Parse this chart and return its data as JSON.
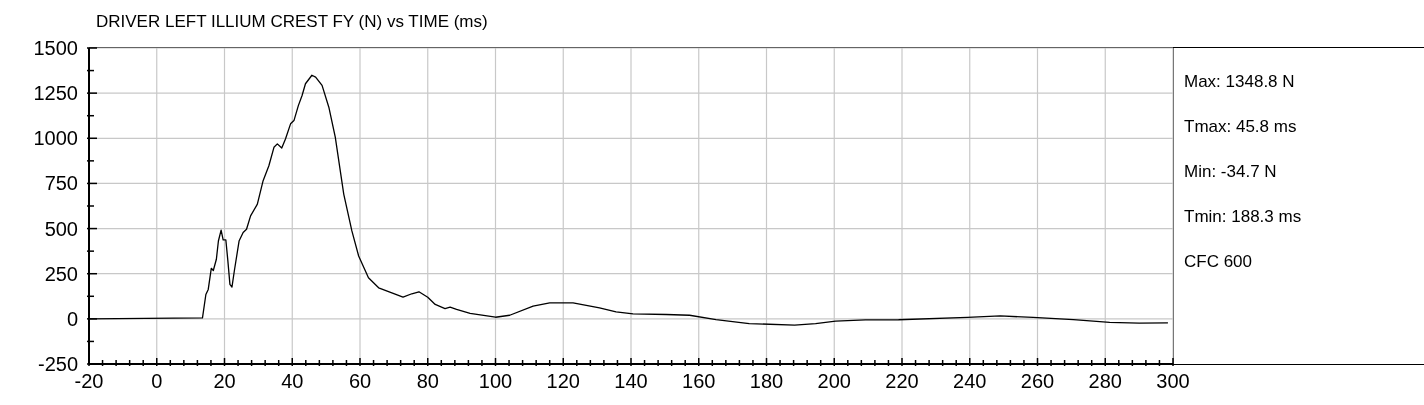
{
  "chart_data": {
    "type": "line",
    "title": "DRIVER LEFT ILLIUM CREST FY (N) vs TIME (ms)",
    "x": [
      -20,
      13.5,
      14.5,
      15.2,
      16.1,
      16.7,
      17.6,
      18.2,
      19.0,
      19.6,
      20.4,
      21.0,
      21.6,
      22.2,
      22.9,
      24.3,
      25.5,
      26.5,
      27.7,
      29.7,
      31.4,
      33.1,
      34.6,
      35.6,
      36.9,
      38.0,
      39.5,
      40.5,
      41.8,
      42.9,
      43.9,
      45.8,
      46.9,
      48.8,
      50.8,
      52.7,
      55.2,
      57.6,
      59.6,
      62.5,
      65.5,
      69.4,
      72.7,
      75.3,
      77.4,
      80,
      82.2,
      85.1,
      86.6,
      88.5,
      92.5,
      100,
      104.2,
      111.1,
      116,
      122.9,
      130.7,
      135.6,
      140.6,
      150.4,
      157.3,
      165.1,
      174.9,
      188.3,
      194.5,
      200.4,
      209.2,
      219,
      239.3,
      249,
      258.7,
      270.6,
      281.3,
      290,
      298.5
    ],
    "series": [
      {
        "color": "#000000",
        "values": [
          0,
          5,
          135,
          163,
          280,
          268,
          330,
          431,
          491,
          437,
          437,
          320,
          191,
          176,
          265,
          431,
          478,
          496,
          570,
          635,
          765,
          848,
          950,
          969,
          946,
          996,
          1080,
          1098,
          1181,
          1237,
          1302,
          1349,
          1339,
          1293,
          1172,
          1006,
          691,
          487,
          348,
          228,
          172,
          144,
          120,
          139,
          150,
          120,
          80,
          57,
          65,
          52,
          30,
          9,
          20,
          70,
          89,
          89,
          61,
          39,
          28,
          24,
          20,
          -4,
          -26,
          -35,
          -26,
          -13,
          -6,
          -5,
          8,
          16,
          8,
          -4,
          -20,
          -24,
          -22
        ]
      }
    ],
    "xlim": [
      -20,
      300
    ],
    "xticks": [
      -20,
      {
        "value": -16,
        "label": null
      },
      {
        "value": -12,
        "label": null
      },
      {
        "value": -8,
        "label": null
      },
      {
        "value": -4,
        "label": null
      },
      0,
      {
        "value": 4,
        "label": null
      },
      {
        "value": 8,
        "label": null
      },
      {
        "value": 12,
        "label": null
      },
      {
        "value": 16,
        "label": null
      },
      20,
      {
        "value": 24,
        "label": null
      },
      {
        "value": 28,
        "label": null
      },
      {
        "value": 32,
        "label": null
      },
      {
        "value": 36,
        "label": null
      },
      40,
      {
        "value": 44,
        "label": null
      },
      {
        "value": 48,
        "label": null
      },
      {
        "value": 52,
        "label": null
      },
      {
        "value": 56,
        "label": null
      },
      60,
      {
        "value": 64,
        "label": null
      },
      {
        "value": 68,
        "label": null
      },
      {
        "value": 72,
        "label": null
      },
      {
        "value": 76,
        "label": null
      },
      80,
      {
        "value": 84,
        "label": null
      },
      {
        "value": 88,
        "label": null
      },
      {
        "value": 92,
        "label": null
      },
      {
        "value": 96,
        "label": null
      },
      100,
      {
        "value": 104,
        "label": null
      },
      {
        "value": 108,
        "label": null
      },
      {
        "value": 112,
        "label": null
      },
      {
        "value": 116,
        "label": null
      },
      120,
      {
        "value": 124,
        "label": null
      },
      {
        "value": 128,
        "label": null
      },
      {
        "value": 132,
        "label": null
      },
      {
        "value": 136,
        "label": null
      },
      140,
      {
        "value": 144,
        "label": null
      },
      {
        "value": 148,
        "label": null
      },
      {
        "value": 152,
        "label": null
      },
      {
        "value": 156,
        "label": null
      },
      160,
      {
        "value": 164,
        "label": null
      },
      {
        "value": 168,
        "label": null
      },
      {
        "value": 172,
        "label": null
      },
      {
        "value": 176,
        "label": null
      },
      180,
      {
        "value": 184,
        "label": null
      },
      {
        "value": 188,
        "label": null
      },
      {
        "value": 192,
        "label": null
      },
      {
        "value": 196,
        "label": null
      },
      200,
      {
        "value": 204,
        "label": null
      },
      {
        "value": 208,
        "label": null
      },
      {
        "value": 212,
        "label": null
      },
      {
        "value": 216,
        "label": null
      },
      220,
      {
        "value": 224,
        "label": null
      },
      {
        "value": 228,
        "label": null
      },
      {
        "value": 232,
        "label": null
      },
      {
        "value": 236,
        "label": null
      },
      240,
      {
        "value": 244,
        "label": null
      },
      {
        "value": 248,
        "label": null
      },
      {
        "value": 252,
        "label": null
      },
      {
        "value": 256,
        "label": null
      },
      260,
      {
        "value": 264,
        "label": null
      },
      {
        "value": 268,
        "label": null
      },
      {
        "value": 272,
        "label": null
      },
      {
        "value": 276,
        "label": null
      },
      280,
      {
        "value": 284,
        "label": null
      },
      {
        "value": 288,
        "label": null
      },
      {
        "value": 292,
        "label": null
      },
      {
        "value": 296,
        "label": null
      },
      300
    ],
    "ylim": [
      -250,
      1500
    ],
    "yticks": [
      -250,
      {
        "value": -125,
        "label": null
      },
      0,
      {
        "value": 125,
        "label": null
      },
      250,
      {
        "value": 375,
        "label": null
      },
      500,
      {
        "value": 625,
        "label": null
      },
      750,
      {
        "value": 875,
        "label": null
      },
      1000,
      {
        "value": 1125,
        "label": null
      },
      1250,
      {
        "value": 1375,
        "label": null
      },
      1500
    ],
    "grid": true,
    "annotations": [
      "Max: 1348.8 N",
      "Tmax: 45.8 ms",
      "Min: -34.7 N",
      "Tmin: 188.3 ms",
      "CFC 600"
    ]
  }
}
